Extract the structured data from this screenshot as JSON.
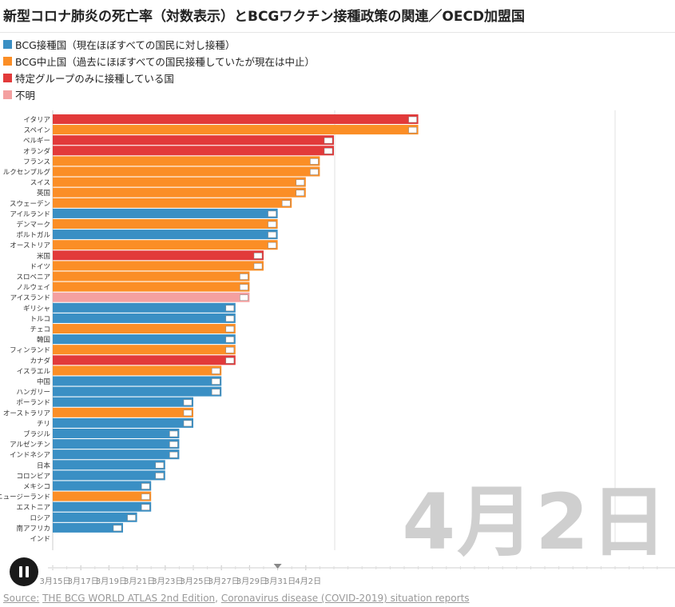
{
  "title": "新型コロナ肺炎の死亡率（対数表示）とBCGワクチン接種政策の関連／OECD加盟国",
  "legend": [
    {
      "label": "BCG接種国（現在ほぼすべての国民に対し接種）",
      "color": "#3a8fc4"
    },
    {
      "label": "BCG中止国（過去にほぼすべての国民接種していたが現在は中止）",
      "color": "#fb8e26"
    },
    {
      "label": "特定グループのみに接種している国",
      "color": "#e23a3a"
    },
    {
      "label": "不明",
      "color": "#f4a0a0"
    }
  ],
  "current_date": "4月2日",
  "play_state": "pause",
  "source": {
    "prefix": "Source:",
    "link1": "THE BCG WORLD ATLAS 2nd Edition",
    "separator": ",",
    "link2": "Coronavirus disease (COVID-2019) situation reports"
  },
  "chart_data": {
    "type": "bar",
    "orientation": "horizontal",
    "title": "新型コロナ肺炎の死亡率（対数表示）とBCGワクチン接種政策の関連／OECD加盟国",
    "x_scale": "date",
    "x_ticks": [
      "3月15日",
      "3月17日",
      "3月19日",
      "3月21日",
      "3月23日",
      "3月25日",
      "3月27日",
      "3月29日",
      "3月31日",
      "4月2日"
    ],
    "slider_marker": "3月31日",
    "bars": [
      {
        "country": "イタリア",
        "category": "specific",
        "date_reached": "4月10日"
      },
      {
        "country": "スペイン",
        "category": "stopped",
        "date_reached": "4月10日"
      },
      {
        "country": "ベルギー",
        "category": "specific",
        "date_reached": "4月4日"
      },
      {
        "country": "オランダ",
        "category": "specific",
        "date_reached": "4月4日"
      },
      {
        "country": "フランス",
        "category": "stopped",
        "date_reached": "4月3日"
      },
      {
        "country": "ルクセンブルグ",
        "category": "stopped",
        "date_reached": "4月3日"
      },
      {
        "country": "スイス",
        "category": "stopped",
        "date_reached": "4月2日"
      },
      {
        "country": "英国",
        "category": "stopped",
        "date_reached": "4月2日"
      },
      {
        "country": "スウェーデン",
        "category": "stopped",
        "date_reached": "4月1日"
      },
      {
        "country": "アイルランド",
        "category": "bcg",
        "date_reached": "3月31日"
      },
      {
        "country": "デンマーク",
        "category": "stopped",
        "date_reached": "3月31日"
      },
      {
        "country": "ポルトガル",
        "category": "bcg",
        "date_reached": "3月31日"
      },
      {
        "country": "オーストリア",
        "category": "stopped",
        "date_reached": "3月31日"
      },
      {
        "country": "米国",
        "category": "specific",
        "date_reached": "3月30日"
      },
      {
        "country": "ドイツ",
        "category": "stopped",
        "date_reached": "3月30日"
      },
      {
        "country": "スロベニア",
        "category": "stopped",
        "date_reached": "3月29日"
      },
      {
        "country": "ノルウェイ",
        "category": "stopped",
        "date_reached": "3月29日"
      },
      {
        "country": "アイスランド",
        "category": "unknown",
        "date_reached": "3月29日"
      },
      {
        "country": "ギリシャ",
        "category": "bcg",
        "date_reached": "3月28日"
      },
      {
        "country": "トルコ",
        "category": "bcg",
        "date_reached": "3月28日"
      },
      {
        "country": "チェコ",
        "category": "stopped",
        "date_reached": "3月28日"
      },
      {
        "country": "韓国",
        "category": "bcg",
        "date_reached": "3月28日"
      },
      {
        "country": "フィンランド",
        "category": "stopped",
        "date_reached": "3月28日"
      },
      {
        "country": "カナダ",
        "category": "specific",
        "date_reached": "3月28日"
      },
      {
        "country": "イスラエル",
        "category": "stopped",
        "date_reached": "3月27日"
      },
      {
        "country": "中国",
        "category": "bcg",
        "date_reached": "3月27日"
      },
      {
        "country": "ハンガリー",
        "category": "bcg",
        "date_reached": "3月27日"
      },
      {
        "country": "ポーランド",
        "category": "bcg",
        "date_reached": "3月25日"
      },
      {
        "country": "オーストラリア",
        "category": "stopped",
        "date_reached": "3月25日"
      },
      {
        "country": "チリ",
        "category": "bcg",
        "date_reached": "3月25日"
      },
      {
        "country": "ブラジル",
        "category": "bcg",
        "date_reached": "3月24日"
      },
      {
        "country": "アルゼンチン",
        "category": "bcg",
        "date_reached": "3月24日"
      },
      {
        "country": "インドネシア",
        "category": "bcg",
        "date_reached": "3月24日"
      },
      {
        "country": "日本",
        "category": "bcg",
        "date_reached": "3月23日"
      },
      {
        "country": "コロンビア",
        "category": "bcg",
        "date_reached": "3月23日"
      },
      {
        "country": "メキシコ",
        "category": "bcg",
        "date_reached": "3月22日"
      },
      {
        "country": "ニュージーランド",
        "category": "stopped",
        "date_reached": "3月22日"
      },
      {
        "country": "エストニア",
        "category": "bcg",
        "date_reached": "3月22日"
      },
      {
        "country": "ロシア",
        "category": "bcg",
        "date_reached": "3月21日"
      },
      {
        "country": "南アフリカ",
        "category": "bcg",
        "date_reached": "3月20日"
      },
      {
        "country": "インド",
        "category": "bcg",
        "date_reached": "3月15日"
      }
    ],
    "colors": {
      "bcg": "#3a8fc4",
      "stopped": "#fb8e26",
      "specific": "#e23a3a",
      "unknown": "#f4a0a0"
    }
  }
}
